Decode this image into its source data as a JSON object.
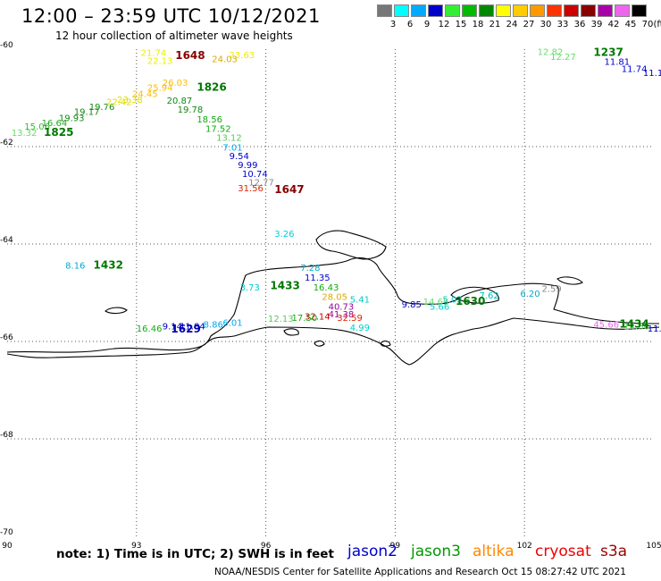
{
  "header": {
    "title": "12:00 – 23:59 UTC 10/12/2021",
    "subtitle": "12 hour collection of altimeter wave heights"
  },
  "scale": {
    "unit": "(ft)",
    "bins": [
      {
        "label": "3",
        "color": "#777777"
      },
      {
        "label": "6",
        "color": "#00ffff"
      },
      {
        "label": "9",
        "color": "#00aaff"
      },
      {
        "label": "12",
        "color": "#0000cc"
      },
      {
        "label": "15",
        "color": "#33ee33"
      },
      {
        "label": "18",
        "color": "#00bb00"
      },
      {
        "label": "21",
        "color": "#008800"
      },
      {
        "label": "24",
        "color": "#ffff00"
      },
      {
        "label": "27",
        "color": "#ffcc00"
      },
      {
        "label": "30",
        "color": "#ff9900"
      },
      {
        "label": "33",
        "color": "#ff3300"
      },
      {
        "label": "36",
        "color": "#cc0000"
      },
      {
        "label": "39",
        "color": "#880000"
      },
      {
        "label": "42",
        "color": "#aa00aa"
      },
      {
        "label": "45",
        "color": "#ee66ee"
      },
      {
        "label": "70",
        "color": "#000000"
      }
    ]
  },
  "map": {
    "lon_range": [
      90,
      105
    ],
    "lat_range": [
      -70,
      -60
    ],
    "lon_ticks": [
      "90",
      "93",
      "96",
      "99",
      "102",
      "105"
    ],
    "lat_ticks": [
      "-60",
      "-62",
      "-64",
      "-66",
      "-68",
      "-70"
    ],
    "grid_color": "#555555"
  },
  "observations": [
    {
      "v": "13.32",
      "lon": 90.1,
      "lat": -61.78,
      "c": "#66dd66"
    },
    {
      "v": "15.06",
      "lon": 90.4,
      "lat": -61.65,
      "c": "#33bb33"
    },
    {
      "v": "16.64",
      "lon": 90.8,
      "lat": -61.58,
      "c": "#22aa22"
    },
    {
      "v": "19.93",
      "lon": 91.2,
      "lat": -61.48,
      "c": "#118811"
    },
    {
      "v": "19.17",
      "lon": 91.55,
      "lat": -61.35,
      "c": "#118811"
    },
    {
      "v": "19.76",
      "lon": 91.9,
      "lat": -61.25,
      "c": "#118811"
    },
    {
      "v": "22.42",
      "lon": 92.3,
      "lat": -61.15,
      "c": "#dddd00"
    },
    {
      "v": "23.38",
      "lon": 92.55,
      "lat": -61.1,
      "c": "#dddd00"
    },
    {
      "v": "24.45",
      "lon": 92.9,
      "lat": -60.98,
      "c": "#ffbb00"
    },
    {
      "v": "25.94",
      "lon": 93.25,
      "lat": -60.85,
      "c": "#ffbb00"
    },
    {
      "v": "26.03",
      "lon": 93.6,
      "lat": -60.75,
      "c": "#ffbb00"
    },
    {
      "v": "20.87",
      "lon": 93.7,
      "lat": -61.12,
      "c": "#118811"
    },
    {
      "v": "19.78",
      "lon": 93.95,
      "lat": -61.3,
      "c": "#118811"
    },
    {
      "v": "18.56",
      "lon": 94.4,
      "lat": -61.5,
      "c": "#11aa11"
    },
    {
      "v": "17.52",
      "lon": 94.6,
      "lat": -61.7,
      "c": "#11aa11"
    },
    {
      "v": "13.12",
      "lon": 94.85,
      "lat": -61.88,
      "c": "#55cc55"
    },
    {
      "v": "7.01",
      "lon": 95.0,
      "lat": -62.08,
      "c": "#00aaee"
    },
    {
      "v": "9.54",
      "lon": 95.15,
      "lat": -62.26,
      "c": "#0000cc"
    },
    {
      "v": "9.99",
      "lon": 95.35,
      "lat": -62.44,
      "c": "#0000cc"
    },
    {
      "v": "10.74",
      "lon": 95.45,
      "lat": -62.62,
      "c": "#0000cc"
    },
    {
      "v": "12.77",
      "lon": 95.6,
      "lat": -62.8,
      "c": "#888888"
    },
    {
      "v": "31.56",
      "lon": 95.35,
      "lat": -62.92,
      "c": "#dd2200"
    },
    {
      "v": "21.74",
      "lon": 93.1,
      "lat": -60.14,
      "c": "#eeee00"
    },
    {
      "v": "22.13",
      "lon": 93.25,
      "lat": -60.3,
      "c": "#eeee00"
    },
    {
      "v": "23.63",
      "lon": 95.15,
      "lat": -60.18,
      "c": "#eeee00"
    },
    {
      "v": "24.03",
      "lon": 94.75,
      "lat": -60.27,
      "c": "#ddaa00"
    },
    {
      "v": "3.26",
      "lon": 96.2,
      "lat": -63.85,
      "c": "#00ccdd"
    },
    {
      "v": "8.16",
      "lon": 91.35,
      "lat": -64.5,
      "c": "#00aacc"
    },
    {
      "v": "7.28",
      "lon": 96.8,
      "lat": -64.55,
      "c": "#00aacc"
    },
    {
      "v": "11.35",
      "lon": 96.9,
      "lat": -64.75,
      "c": "#0000cc"
    },
    {
      "v": "3.73",
      "lon": 95.4,
      "lat": -64.95,
      "c": "#00cccc"
    },
    {
      "v": "16.43",
      "lon": 97.1,
      "lat": -64.95,
      "c": "#11aa11"
    },
    {
      "v": "28.05",
      "lon": 97.3,
      "lat": -65.15,
      "c": "#ddaa00"
    },
    {
      "v": "5.41",
      "lon": 97.95,
      "lat": -65.2,
      "c": "#00cccc"
    },
    {
      "v": "40.73",
      "lon": 97.45,
      "lat": -65.35,
      "c": "#990099"
    },
    {
      "v": "41.38",
      "lon": 97.45,
      "lat": -65.5,
      "c": "#990099"
    },
    {
      "v": "32.14",
      "lon": 96.9,
      "lat": -65.55,
      "c": "#cc0000"
    },
    {
      "v": "32.59",
      "lon": 97.65,
      "lat": -65.58,
      "c": "#dd2200"
    },
    {
      "v": "4.99",
      "lon": 97.95,
      "lat": -65.78,
      "c": "#00cccc"
    },
    {
      "v": "12.13",
      "lon": 96.05,
      "lat": -65.6,
      "c": "#55cc55"
    },
    {
      "v": "17.50",
      "lon": 96.6,
      "lat": -65.58,
      "c": "#11aa11"
    },
    {
      "v": "16.46",
      "lon": 93.0,
      "lat": -65.8,
      "c": "#11aa11"
    },
    {
      "v": "9.14",
      "lon": 93.6,
      "lat": -65.75,
      "c": "#0000cc"
    },
    {
      "v": "11.84",
      "lon": 94.0,
      "lat": -65.75,
      "c": "#0000cc"
    },
    {
      "v": "8.86",
      "lon": 94.55,
      "lat": -65.72,
      "c": "#00aaee"
    },
    {
      "v": "6.01",
      "lon": 95.0,
      "lat": -65.68,
      "c": "#00aaee"
    },
    {
      "v": "9.85",
      "lon": 99.15,
      "lat": -65.3,
      "c": "#0000cc"
    },
    {
      "v": "14.65",
      "lon": 99.65,
      "lat": -65.25,
      "c": "#66dd66"
    },
    {
      "v": "5.66",
      "lon": 99.8,
      "lat": -65.35,
      "c": "#00cccc"
    },
    {
      "v": "5.02",
      "lon": 100.1,
      "lat": -65.2,
      "c": "#00cccc"
    },
    {
      "v": "7.62",
      "lon": 100.95,
      "lat": -65.12,
      "c": "#00bbbb"
    },
    {
      "v": "6.20",
      "lon": 101.9,
      "lat": -65.08,
      "c": "#00aacc"
    },
    {
      "v": "2.59",
      "lon": 102.4,
      "lat": -64.98,
      "c": "#888888"
    },
    {
      "v": "45.66",
      "lon": 103.6,
      "lat": -65.72,
      "c": "#ee66ee"
    },
    {
      "v": "14.66",
      "lon": 104.3,
      "lat": -65.75,
      "c": "#66dd66"
    },
    {
      "v": "11.59",
      "lon": 104.85,
      "lat": -65.8,
      "c": "#0000cc"
    },
    {
      "v": "12.82",
      "lon": 102.3,
      "lat": -60.12,
      "c": "#66dd66"
    },
    {
      "v": "12.27",
      "lon": 102.6,
      "lat": -60.22,
      "c": "#66dd66"
    },
    {
      "v": "11.81",
      "lon": 103.85,
      "lat": -60.32,
      "c": "#0000cc"
    },
    {
      "v": "11.74",
      "lon": 104.25,
      "lat": -60.47,
      "c": "#0000cc"
    },
    {
      "v": "11.19",
      "lon": 104.75,
      "lat": -60.55,
      "c": "#0000cc"
    }
  ],
  "pass_times": [
    {
      "t": "1648",
      "lon": 93.9,
      "lat": -60.2,
      "c": "#880000"
    },
    {
      "t": "1826",
      "lon": 94.4,
      "lat": -60.85,
      "c": "#007700"
    },
    {
      "t": "1825",
      "lon": 90.85,
      "lat": -61.78,
      "c": "#007700"
    },
    {
      "t": "1647",
      "lon": 96.2,
      "lat": -62.95,
      "c": "#880000"
    },
    {
      "t": "1432",
      "lon": 92.0,
      "lat": -64.5,
      "c": "#007700"
    },
    {
      "t": "1433",
      "lon": 96.1,
      "lat": -64.93,
      "c": "#007700"
    },
    {
      "t": "1629",
      "lon": 93.8,
      "lat": -65.82,
      "c": "#0000aa"
    },
    {
      "t": "1630",
      "lon": 100.4,
      "lat": -65.25,
      "c": "#007700"
    },
    {
      "t": "1434",
      "lon": 104.2,
      "lat": -65.72,
      "c": "#007700"
    },
    {
      "t": "1237",
      "lon": 103.6,
      "lat": -60.14,
      "c": "#007700"
    }
  ],
  "footer": {
    "note": "note:  1) Time is in UTC;  2) SWH is in feet",
    "satellites": [
      {
        "name": "jason2",
        "color": "#0000cc"
      },
      {
        "name": "jason3",
        "color": "#009900"
      },
      {
        "name": "altika",
        "color": "#ff8800"
      },
      {
        "name": "cryosat",
        "color": "#ee0000"
      },
      {
        "name": "s3a",
        "color": "#990000"
      }
    ],
    "credit": "NOAA/NESDIS Center for Satellite Applications and Research     Oct 15 08:27:42 UTC 2021"
  }
}
